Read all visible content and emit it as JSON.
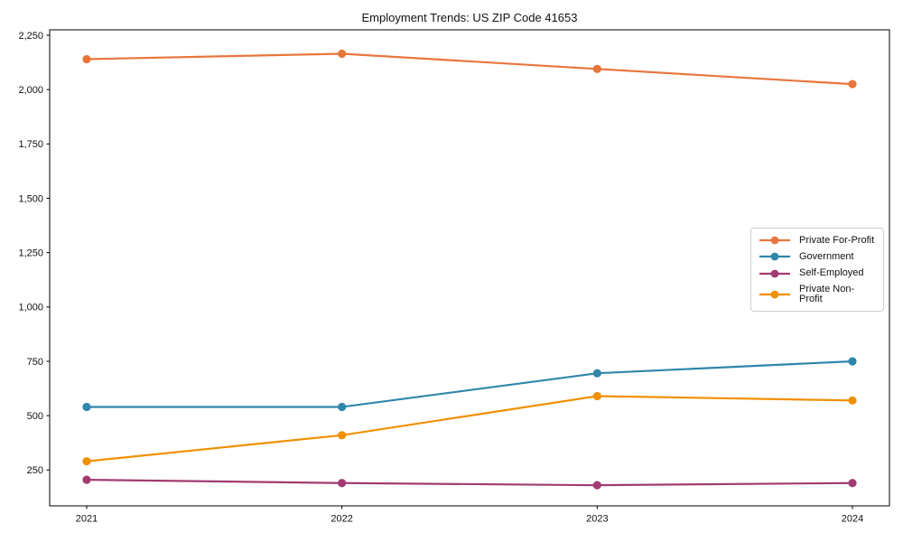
{
  "figure": {
    "background": "#ffffff",
    "frame_color": "#000000",
    "text_color": "#111111"
  },
  "chart_data": {
    "type": "line",
    "title": "Employment Trends: US ZIP Code 41653",
    "xlabel": "",
    "ylabel": "",
    "categories": [
      "2021",
      "2022",
      "2023",
      "2024"
    ],
    "series": [
      {
        "name": "Private For-Profit",
        "color": "#E8763C",
        "values": [
          2140,
          2165,
          2095,
          2025
        ]
      },
      {
        "name": "Government",
        "color": "#2E86AB",
        "values": [
          540,
          540,
          695,
          750
        ]
      },
      {
        "name": "Self-Employed",
        "color": "#A23B72",
        "values": [
          205,
          190,
          180,
          190
        ]
      },
      {
        "name": "Private Non-Profit",
        "color": "#F18F01",
        "values": [
          290,
          410,
          590,
          570
        ]
      }
    ],
    "ylim": [
      85,
      2275
    ],
    "yticks": [
      250,
      500,
      750,
      1000,
      1250,
      1500,
      1750,
      2000,
      2250
    ],
    "ytick_labels": [
      "250",
      "500",
      "750",
      "1,000",
      "1,250",
      "1,500",
      "1,750",
      "2,000",
      "2,250"
    ],
    "grid": false,
    "legend_position": "center-right",
    "marker": "circle",
    "line_width": 2.2,
    "marker_radius": 4.6
  }
}
